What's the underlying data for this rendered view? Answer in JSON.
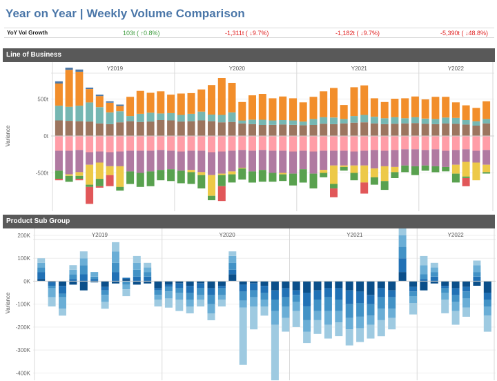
{
  "page": {
    "title": "Year on Year | Weekly Volume Comparison"
  },
  "yoy": {
    "label": "YoY Vol Growth",
    "values": [
      {
        "text": "103t ( ↑0.8%)",
        "sign": "pos"
      },
      {
        "text": "-1,311t ( ↓9.7%)",
        "sign": "neg"
      },
      {
        "text": "-1,182t ( ↓9.7%)",
        "sign": "neg"
      },
      {
        "text": "-5,390t ( ↓48.8%)",
        "sign": "neg"
      }
    ]
  },
  "sections": {
    "line_of_business": "Line of Business",
    "product_sub_group": "Product Sub Group"
  },
  "colors": {
    "orange": "#f28e2b",
    "teal": "#76b7b2",
    "brown": "#9c755f",
    "pink": "#ff9da7",
    "purple": "#b07aa1",
    "yellow": "#edc948",
    "green": "#59a14f",
    "red": "#e15759",
    "blue": "#4e79a7",
    "blue_light": "#9ecae1",
    "blue_mid": "#6aaed6",
    "blue_med2": "#4292c6",
    "blue_dark": "#2171b5",
    "blue_navy": "#0b4f8a"
  },
  "chart_data": [
    {
      "type": "bar",
      "title": "Line of Business",
      "ylabel": "Variance",
      "ylim": [
        -1000,
        1000
      ],
      "yticks": [
        "500t",
        "0t",
        "-500t"
      ],
      "ytick_values": [
        500,
        0,
        -500
      ],
      "panels": [
        {
          "label": "Y2019",
          "start": 0,
          "count": 12
        },
        {
          "label": "Y2020",
          "start": 12,
          "count": 12
        },
        {
          "label": "Y2021",
          "start": 24,
          "count": 12
        },
        {
          "label": "Y2022",
          "start": 36,
          "count": 7
        }
      ],
      "series": [
        {
          "name": "Brown",
          "color": "#9c755f",
          "values": [
            210,
            205,
            200,
            195,
            170,
            160,
            185,
            200,
            190,
            195,
            215,
            210,
            195,
            200,
            210,
            200,
            185,
            190,
            170,
            160,
            150,
            150,
            155,
            150,
            145,
            150,
            165,
            160,
            170,
            180,
            185,
            170,
            160,
            165,
            170,
            175,
            165,
            160,
            170,
            165,
            155,
            140,
            170
          ]
        },
        {
          "name": "Teal",
          "color": "#76b7b2",
          "values": [
            200,
            190,
            210,
            260,
            220,
            160,
            150,
            70,
            110,
            120,
            90,
            100,
            90,
            100,
            120,
            90,
            100,
            130,
            40,
            60,
            70,
            60,
            60,
            60,
            50,
            80,
            90,
            90,
            60,
            90,
            100,
            90,
            80,
            90,
            70,
            80,
            70,
            70,
            80,
            80,
            60,
            60,
            60
          ]
        },
        {
          "name": "Orange",
          "color": "#f28e2b",
          "values": [
            300,
            500,
            460,
            180,
            150,
            130,
            70,
            260,
            310,
            270,
            300,
            250,
            290,
            280,
            300,
            400,
            500,
            400,
            250,
            330,
            350,
            300,
            320,
            300,
            260,
            300,
            350,
            400,
            190,
            390,
            400,
            250,
            220,
            250,
            270,
            280,
            260,
            300,
            280,
            210,
            200,
            180,
            240
          ]
        },
        {
          "name": "Blue",
          "color": "#4e79a7",
          "values": [
            30,
            30,
            30,
            20,
            20,
            20,
            20,
            0,
            0,
            0,
            0,
            0,
            0,
            0,
            0,
            0,
            0,
            0,
            0,
            0,
            0,
            0,
            0,
            0,
            0,
            0,
            0,
            0,
            0,
            0,
            0,
            0,
            0,
            0,
            0,
            0,
            0,
            0,
            0,
            0,
            0,
            0,
            0
          ]
        },
        {
          "name": "Pink",
          "color": "#ff9da7",
          "values": [
            -200,
            -200,
            -190,
            -220,
            -210,
            -220,
            -210,
            -200,
            -200,
            -200,
            -190,
            -200,
            -210,
            -200,
            -200,
            -220,
            -210,
            -200,
            -190,
            -200,
            -190,
            -200,
            -200,
            -210,
            -200,
            -210,
            -200,
            -200,
            -200,
            -210,
            -200,
            -190,
            -200,
            -190,
            -180,
            -180,
            -190,
            -180,
            -200,
            -190,
            -180,
            -200,
            -190
          ]
        },
        {
          "name": "Purple",
          "color": "#b07aa1",
          "values": [
            -270,
            -320,
            -300,
            -170,
            -150,
            -190,
            -200,
            -280,
            -300,
            -280,
            -270,
            -250,
            -260,
            -260,
            -290,
            -310,
            -300,
            -280,
            -240,
            -280,
            -270,
            -300,
            -300,
            -300,
            -250,
            -300,
            -260,
            -200,
            -200,
            -190,
            -200,
            -250,
            -210,
            -230,
            -220,
            -230,
            -210,
            -230,
            -220,
            -200,
            -170,
            -160,
            -200
          ]
        },
        {
          "name": "Yellow",
          "color": "#edc948",
          "values": [
            0,
            -20,
            -50,
            -270,
            -220,
            -120,
            -280,
            0,
            0,
            0,
            0,
            0,
            0,
            -30,
            -40,
            -280,
            -20,
            -40,
            -10,
            0,
            0,
            0,
            -20,
            0,
            0,
            0,
            -40,
            -250,
            -20,
            -100,
            -230,
            -120,
            -200,
            -70,
            0,
            0,
            0,
            0,
            0,
            -120,
            -200,
            -240,
            -100
          ]
        },
        {
          "name": "Green",
          "color": "#59a14f",
          "values": [
            -110,
            -80,
            -40,
            -30,
            -100,
            0,
            -50,
            -170,
            -190,
            -200,
            -140,
            -160,
            -170,
            -160,
            -180,
            -60,
            -150,
            -110,
            -150,
            -150,
            -160,
            -120,
            -90,
            -160,
            -180,
            -200,
            -60,
            -60,
            -50,
            -100,
            0,
            -100,
            -120,
            -80,
            -90,
            -120,
            -70,
            -80,
            -60,
            -120,
            -20,
            0,
            -20
          ]
        },
        {
          "name": "Red",
          "color": "#e15759",
          "values": [
            -20,
            0,
            -20,
            -230,
            -20,
            -150,
            0,
            0,
            0,
            0,
            0,
            0,
            0,
            0,
            0,
            0,
            -200,
            0,
            0,
            0,
            0,
            0,
            0,
            0,
            0,
            0,
            0,
            -120,
            0,
            0,
            -150,
            0,
            0,
            0,
            0,
            0,
            0,
            0,
            0,
            0,
            -110,
            0,
            0
          ]
        }
      ]
    },
    {
      "type": "bar",
      "title": "Product Sub Group",
      "ylabel": "Variance",
      "ylim": [
        -420000,
        230000
      ],
      "yticks": [
        "200K",
        "100K",
        "0K",
        "-100K",
        "-200K",
        "-300K",
        "-400K"
      ],
      "ytick_values": [
        200000,
        100000,
        0,
        -100000,
        -200000,
        -300000,
        -400000
      ],
      "panels": [
        {
          "label": "Y2019",
          "start": 0,
          "count": 12
        },
        {
          "label": "Y2020",
          "start": 12,
          "count": 12
        },
        {
          "label": "Y2021",
          "start": 24,
          "count": 12
        },
        {
          "label": "Y2022",
          "start": 36,
          "count": 7
        }
      ],
      "series": [
        {
          "name": "Blue navy",
          "color": "#0b4f8a",
          "values": [
            10,
            -5,
            -20,
            -15,
            -40,
            -5,
            -25,
            -10,
            10,
            -15,
            -10,
            -30,
            -15,
            -10,
            -20,
            -10,
            -30,
            -20,
            30,
            -15,
            -10,
            -20,
            -40,
            -30,
            -40,
            -50,
            -40,
            -30,
            -30,
            -40,
            -45,
            -60,
            -30,
            -40,
            40,
            -25,
            -40,
            -10,
            -20,
            -30,
            -25,
            -20,
            -50
          ]
        },
        {
          "name": "Blue dark",
          "color": "#2171b5",
          "values": [
            30,
            -15,
            -35,
            10,
            30,
            10,
            -15,
            40,
            5,
            20,
            20,
            -10,
            -10,
            -20,
            -30,
            -20,
            -30,
            -10,
            20,
            -30,
            -30,
            -30,
            -40,
            -40,
            -20,
            -60,
            -40,
            -40,
            -50,
            -60,
            -50,
            -40,
            -40,
            -30,
            60,
            -20,
            10,
            20,
            -10,
            -30,
            -20,
            20,
            -30
          ]
        },
        {
          "name": "Blue med",
          "color": "#4292c6",
          "values": [
            20,
            -10,
            -15,
            20,
            40,
            10,
            -20,
            40,
            -15,
            30,
            20,
            -20,
            -20,
            -20,
            -30,
            -30,
            -40,
            -30,
            30,
            -40,
            -30,
            -30,
            -50,
            -40,
            -30,
            -60,
            -50,
            -60,
            -50,
            -60,
            -60,
            -50,
            -50,
            -50,
            50,
            -20,
            20,
            20,
            -20,
            -30,
            -30,
            20,
            -30
          ]
        },
        {
          "name": "Blue mid",
          "color": "#6aaed6",
          "values": [
            20,
            -40,
            -50,
            20,
            30,
            20,
            -30,
            50,
            -20,
            30,
            20,
            -20,
            -30,
            -30,
            -30,
            -20,
            -40,
            -20,
            30,
            -30,
            -40,
            -30,
            -60,
            -50,
            -40,
            -50,
            -40,
            -60,
            -50,
            -50,
            -50,
            -40,
            -50,
            -40,
            50,
            -30,
            40,
            20,
            -30,
            -40,
            -40,
            30,
            -40
          ]
        },
        {
          "name": "Blue light",
          "color": "#9ecae1",
          "values": [
            20,
            -40,
            -30,
            20,
            30,
            0,
            -30,
            40,
            -30,
            30,
            20,
            -30,
            -40,
            -50,
            -30,
            -30,
            -30,
            -30,
            20,
            -250,
            -100,
            -40,
            -280,
            -60,
            -70,
            -50,
            -60,
            -60,
            -60,
            -70,
            -60,
            -60,
            -70,
            -50,
            40,
            -50,
            40,
            20,
            -60,
            -60,
            -40,
            20,
            -70
          ]
        }
      ]
    }
  ]
}
